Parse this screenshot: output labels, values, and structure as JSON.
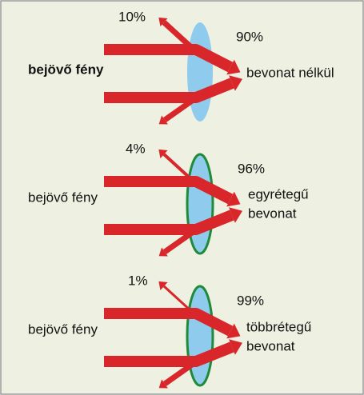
{
  "panels": [
    {
      "reflected": "10%",
      "transmitted": "90%",
      "incoming": "bejövő fény",
      "coating": [
        "bevonat nélkül"
      ]
    },
    {
      "reflected": "4%",
      "transmitted": "96%",
      "incoming": "bejövő fény",
      "coating": [
        "egyrétegű",
        "bevonat"
      ]
    },
    {
      "reflected": "1%",
      "transmitted": "99%",
      "incoming": "bejövő fény",
      "coating": [
        "többrétegű",
        "bevonat"
      ]
    }
  ]
}
